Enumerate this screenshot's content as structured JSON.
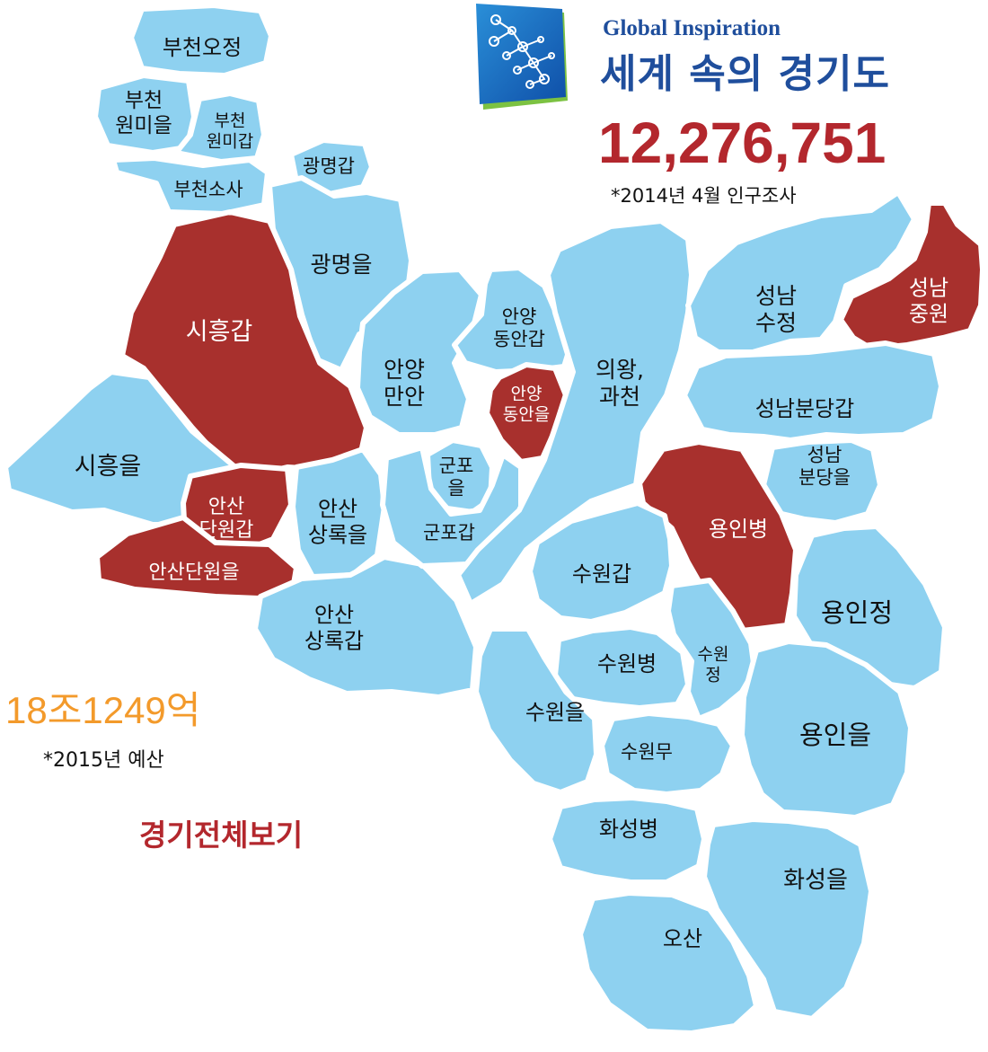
{
  "header": {
    "subtitle": "Global Inspiration",
    "title": "세계 속의 경기도",
    "logo_icon": "network-globe-icon"
  },
  "stats": {
    "population": "12,276,751",
    "population_note": "*2014년 4월 인구조사",
    "budget": "18조1249억",
    "budget_note": "*2015년 예산"
  },
  "links": {
    "view_all": "경기전체보기"
  },
  "colors": {
    "district_blue": "#8ed1f0",
    "district_highlight": "#a8302d",
    "label_dark": "#111111",
    "label_light": "#ffffff",
    "population_red": "#b3272d",
    "budget_orange": "#f39a2b",
    "brand_blue": "#1f4e9c"
  },
  "districts": [
    {
      "id": "bucheon-ojeong",
      "label": "부천오정",
      "highlighted": false
    },
    {
      "id": "bucheon-wonmi-eul",
      "label": "부천\n원미을",
      "highlighted": false
    },
    {
      "id": "bucheon-wonmi-gap",
      "label": "부천\n원미갑",
      "highlighted": false
    },
    {
      "id": "bucheon-sosa",
      "label": "부천소사",
      "highlighted": false
    },
    {
      "id": "gwangmyeong-gap",
      "label": "광명갑",
      "highlighted": false
    },
    {
      "id": "gwangmyeong-eul",
      "label": "광명을",
      "highlighted": false
    },
    {
      "id": "siheung-gap",
      "label": "시흥갑",
      "highlighted": true
    },
    {
      "id": "siheung-eul",
      "label": "시흥을",
      "highlighted": false
    },
    {
      "id": "ansan-danwon-gap",
      "label": "안산\n단원갑",
      "highlighted": true
    },
    {
      "id": "ansan-danwon-eul",
      "label": "안산단원을",
      "highlighted": true
    },
    {
      "id": "ansan-sangnok-eul",
      "label": "안산\n상록을",
      "highlighted": false
    },
    {
      "id": "ansan-sangnok-gap",
      "label": "안산\n상록갑",
      "highlighted": false
    },
    {
      "id": "anyang-manan",
      "label": "안양\n만안",
      "highlighted": false
    },
    {
      "id": "anyang-dongan-gap",
      "label": "안양\n동안갑",
      "highlighted": false
    },
    {
      "id": "anyang-dongan-eul",
      "label": "안양\n동안을",
      "highlighted": true
    },
    {
      "id": "gunpo-eul",
      "label": "군포\n을",
      "highlighted": false
    },
    {
      "id": "gunpo-gap",
      "label": "군포갑",
      "highlighted": false
    },
    {
      "id": "uiwang-gwacheon",
      "label": "의왕,\n과천",
      "highlighted": false
    },
    {
      "id": "seongnam-sujeong",
      "label": "성남\n수정",
      "highlighted": false
    },
    {
      "id": "seongnam-jungwon",
      "label": "성남\n중원",
      "highlighted": true
    },
    {
      "id": "seongnam-bundang-gap",
      "label": "성남분당갑",
      "highlighted": false
    },
    {
      "id": "seongnam-bundang-eul",
      "label": "성남\n분당을",
      "highlighted": false
    },
    {
      "id": "yongin-byeong",
      "label": "용인병",
      "highlighted": true
    },
    {
      "id": "yongin-jeong",
      "label": "용인정",
      "highlighted": false
    },
    {
      "id": "suwon-gap",
      "label": "수원갑",
      "highlighted": false
    },
    {
      "id": "suwon-byeong",
      "label": "수원병",
      "highlighted": false
    },
    {
      "id": "suwon-jeong",
      "label": "수원\n정",
      "highlighted": false
    },
    {
      "id": "suwon-eul",
      "label": "수원을",
      "highlighted": false
    },
    {
      "id": "suwon-mu",
      "label": "수원무",
      "highlighted": false
    },
    {
      "id": "yongin-eul",
      "label": "용인을",
      "highlighted": false
    },
    {
      "id": "hwaseong-byeong",
      "label": "화성병",
      "highlighted": false
    },
    {
      "id": "hwaseong-eul",
      "label": "화성을",
      "highlighted": false
    },
    {
      "id": "osan",
      "label": "오산",
      "highlighted": false
    }
  ]
}
